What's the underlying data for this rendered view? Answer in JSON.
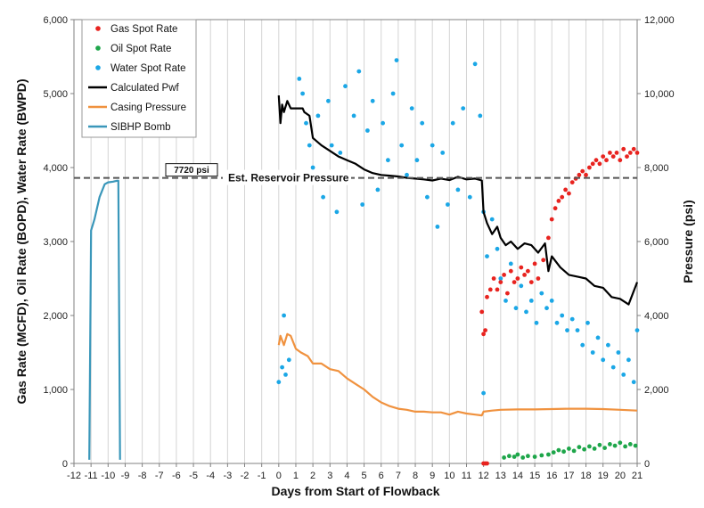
{
  "chart_data": {
    "type": "scatter",
    "xlabel": "Days from Start of Flowback",
    "ylabel_left": "Gas Rate (MCFD), Oil Rate (BOPD), Water Rate (BWPD)",
    "ylabel_right": "Pressure (psi)",
    "x_range": [
      -12,
      21
    ],
    "y_left_range": [
      0,
      6000
    ],
    "y_right_range": [
      0,
      12000
    ],
    "x_ticks": [
      "-12",
      "-11",
      "-10",
      "-9",
      "-8",
      "-7",
      "-6",
      "-5",
      "-4",
      "-3",
      "-2",
      "-1",
      "0",
      "1",
      "2",
      "3",
      "4",
      "5",
      "6",
      "7",
      "8",
      "9",
      "10",
      "11",
      "12",
      "13",
      "14",
      "15",
      "16",
      "17",
      "18",
      "19",
      "20",
      "21"
    ],
    "y_left_ticks": [
      "0",
      "1,000",
      "2,000",
      "3,000",
      "4,000",
      "5,000",
      "6,000"
    ],
    "y_right_ticks": [
      "0",
      "2,000",
      "4,000",
      "6,000",
      "8,000",
      "10,000",
      "12,000"
    ],
    "grid": "vertical",
    "legend_position": "top-left",
    "reservoir_pressure": {
      "value": 7720,
      "box_label": "7720 psi",
      "line_label": "Est. Reservoir Pressure"
    },
    "series": [
      {
        "name": "Gas Spot Rate",
        "axis": "left",
        "kind": "markers",
        "color": "#e8231f",
        "points": [
          [
            12,
            0
          ],
          [
            12.1,
            0
          ],
          [
            12.2,
            0
          ],
          [
            11.9,
            2050
          ],
          [
            12,
            1750
          ],
          [
            12.1,
            1800
          ],
          [
            12.2,
            2250
          ],
          [
            12.4,
            2350
          ],
          [
            12.6,
            2500
          ],
          [
            12.8,
            2350
          ],
          [
            13,
            2450
          ],
          [
            13.2,
            2550
          ],
          [
            13.4,
            2300
          ],
          [
            13.6,
            2600
          ],
          [
            13.8,
            2450
          ],
          [
            14,
            2500
          ],
          [
            14.2,
            2650
          ],
          [
            14.4,
            2550
          ],
          [
            14.6,
            2600
          ],
          [
            14.8,
            2450
          ],
          [
            15,
            2700
          ],
          [
            15.2,
            2500
          ],
          [
            15.5,
            2750
          ],
          [
            15.8,
            3050
          ],
          [
            16,
            3300
          ],
          [
            16.2,
            3450
          ],
          [
            16.4,
            3550
          ],
          [
            16.6,
            3600
          ],
          [
            16.8,
            3700
          ],
          [
            17,
            3650
          ],
          [
            17.2,
            3800
          ],
          [
            17.4,
            3850
          ],
          [
            17.6,
            3900
          ],
          [
            17.8,
            3950
          ],
          [
            18,
            3900
          ],
          [
            18.2,
            4000
          ],
          [
            18.4,
            4050
          ],
          [
            18.6,
            4100
          ],
          [
            18.8,
            4050
          ],
          [
            19,
            4150
          ],
          [
            19.2,
            4100
          ],
          [
            19.4,
            4200
          ],
          [
            19.6,
            4150
          ],
          [
            19.8,
            4200
          ],
          [
            20,
            4100
          ],
          [
            20.2,
            4250
          ],
          [
            20.4,
            4150
          ],
          [
            20.6,
            4200
          ],
          [
            20.8,
            4250
          ],
          [
            21,
            4200
          ]
        ]
      },
      {
        "name": "Oil Spot Rate",
        "axis": "left",
        "kind": "markers",
        "color": "#1ea64a",
        "points": [
          [
            13.2,
            80
          ],
          [
            13.5,
            100
          ],
          [
            13.8,
            90
          ],
          [
            14,
            120
          ],
          [
            14.3,
            80
          ],
          [
            14.6,
            100
          ],
          [
            15,
            90
          ],
          [
            15.4,
            110
          ],
          [
            15.8,
            120
          ],
          [
            16.1,
            150
          ],
          [
            16.4,
            180
          ],
          [
            16.7,
            160
          ],
          [
            17,
            200
          ],
          [
            17.3,
            170
          ],
          [
            17.6,
            220
          ],
          [
            17.9,
            190
          ],
          [
            18.2,
            230
          ],
          [
            18.5,
            200
          ],
          [
            18.8,
            250
          ],
          [
            19.1,
            210
          ],
          [
            19.4,
            260
          ],
          [
            19.7,
            240
          ],
          [
            20,
            280
          ],
          [
            20.3,
            230
          ],
          [
            20.6,
            260
          ],
          [
            20.9,
            240
          ]
        ]
      },
      {
        "name": "Water Spot Rate",
        "axis": "left",
        "kind": "markers",
        "color": "#1ba7e6",
        "points": [
          [
            0,
            1100
          ],
          [
            0.2,
            1300
          ],
          [
            0.4,
            1200
          ],
          [
            0.6,
            1400
          ],
          [
            0.3,
            2000
          ],
          [
            1.2,
            5200
          ],
          [
            1.4,
            5000
          ],
          [
            1.6,
            4600
          ],
          [
            1.8,
            4300
          ],
          [
            2,
            4000
          ],
          [
            2.3,
            4700
          ],
          [
            2.6,
            3600
          ],
          [
            2.9,
            4900
          ],
          [
            3.1,
            4300
          ],
          [
            3.4,
            3400
          ],
          [
            3.6,
            4200
          ],
          [
            3.9,
            5100
          ],
          [
            4.1,
            3900
          ],
          [
            4.4,
            4700
          ],
          [
            4.7,
            5300
          ],
          [
            4.9,
            3500
          ],
          [
            5.2,
            4500
          ],
          [
            5.5,
            4900
          ],
          [
            5.8,
            3700
          ],
          [
            6.1,
            4600
          ],
          [
            6.4,
            4100
          ],
          [
            6.7,
            5000
          ],
          [
            6.9,
            5450
          ],
          [
            7.2,
            4300
          ],
          [
            7.5,
            3900
          ],
          [
            7.8,
            4800
          ],
          [
            8.1,
            4100
          ],
          [
            8.4,
            4600
          ],
          [
            8.7,
            3600
          ],
          [
            9,
            4300
          ],
          [
            9.3,
            3200
          ],
          [
            9.6,
            4200
          ],
          [
            9.9,
            3500
          ],
          [
            10.2,
            4600
          ],
          [
            10.5,
            3700
          ],
          [
            10.8,
            4800
          ],
          [
            11.2,
            3600
          ],
          [
            11.5,
            5400
          ],
          [
            11.8,
            4700
          ],
          [
            12,
            3400
          ],
          [
            12.2,
            2800
          ],
          [
            12.5,
            3300
          ],
          [
            12.8,
            2900
          ],
          [
            13,
            2500
          ],
          [
            13.3,
            2200
          ],
          [
            13.6,
            2700
          ],
          [
            13.9,
            2100
          ],
          [
            14.2,
            2400
          ],
          [
            14.5,
            2050
          ],
          [
            14.8,
            2200
          ],
          [
            15.1,
            1900
          ],
          [
            15.4,
            2300
          ],
          [
            15.7,
            2100
          ],
          [
            16,
            2200
          ],
          [
            16.3,
            1900
          ],
          [
            16.6,
            2000
          ],
          [
            16.9,
            1800
          ],
          [
            17.2,
            1950
          ],
          [
            17.5,
            1800
          ],
          [
            17.8,
            1600
          ],
          [
            18.1,
            1900
          ],
          [
            18.4,
            1500
          ],
          [
            18.7,
            1700
          ],
          [
            19,
            1400
          ],
          [
            19.3,
            1600
          ],
          [
            19.6,
            1300
          ],
          [
            19.9,
            1500
          ],
          [
            20.2,
            1200
          ],
          [
            20.5,
            1400
          ],
          [
            20.8,
            1100
          ],
          [
            21,
            1800
          ],
          [
            12,
            950
          ]
        ]
      },
      {
        "name": "Calculated Pwf",
        "axis": "right",
        "kind": "line",
        "color": "#000000",
        "points": [
          [
            0,
            9950
          ],
          [
            0.1,
            9200
          ],
          [
            0.2,
            9700
          ],
          [
            0.3,
            9500
          ],
          [
            0.5,
            9800
          ],
          [
            0.7,
            9600
          ],
          [
            1.4,
            9600
          ],
          [
            1.5,
            9500
          ],
          [
            1.8,
            9400
          ],
          [
            2,
            8800
          ],
          [
            2.5,
            8600
          ],
          [
            3,
            8450
          ],
          [
            3.5,
            8300
          ],
          [
            4,
            8200
          ],
          [
            4.5,
            8100
          ],
          [
            5,
            7950
          ],
          [
            5.5,
            7850
          ],
          [
            6,
            7800
          ],
          [
            6.5,
            7780
          ],
          [
            7,
            7760
          ],
          [
            7.5,
            7720
          ],
          [
            8,
            7700
          ],
          [
            8.5,
            7680
          ],
          [
            9,
            7650
          ],
          [
            9.5,
            7700
          ],
          [
            10,
            7660
          ],
          [
            10.5,
            7750
          ],
          [
            11,
            7680
          ],
          [
            11.5,
            7700
          ],
          [
            11.9,
            7650
          ],
          [
            12,
            6800
          ],
          [
            12.2,
            6500
          ],
          [
            12.5,
            6200
          ],
          [
            12.8,
            6400
          ],
          [
            13,
            6100
          ],
          [
            13.3,
            5900
          ],
          [
            13.6,
            6000
          ],
          [
            14,
            5800
          ],
          [
            14.4,
            5950
          ],
          [
            14.8,
            5900
          ],
          [
            15.2,
            5700
          ],
          [
            15.6,
            5950
          ],
          [
            15.8,
            5200
          ],
          [
            16,
            5600
          ],
          [
            16.5,
            5300
          ],
          [
            17,
            5100
          ],
          [
            17.5,
            5050
          ],
          [
            18,
            5000
          ],
          [
            18.5,
            4800
          ],
          [
            19,
            4750
          ],
          [
            19.5,
            4500
          ],
          [
            20,
            4450
          ],
          [
            20.5,
            4300
          ],
          [
            21,
            4900
          ]
        ]
      },
      {
        "name": "Casing Pressure",
        "axis": "right",
        "kind": "line",
        "color": "#f0923f",
        "points": [
          [
            0,
            3200
          ],
          [
            0.1,
            3450
          ],
          [
            0.3,
            3200
          ],
          [
            0.5,
            3500
          ],
          [
            0.7,
            3450
          ],
          [
            1,
            3100
          ],
          [
            1.3,
            3000
          ],
          [
            1.7,
            2900
          ],
          [
            2,
            2700
          ],
          [
            2.5,
            2700
          ],
          [
            3,
            2550
          ],
          [
            3.5,
            2500
          ],
          [
            4,
            2300
          ],
          [
            4.5,
            2150
          ],
          [
            5,
            2000
          ],
          [
            5.5,
            1800
          ],
          [
            6,
            1650
          ],
          [
            6.5,
            1550
          ],
          [
            7,
            1480
          ],
          [
            7.5,
            1450
          ],
          [
            8,
            1400
          ],
          [
            8.5,
            1400
          ],
          [
            9,
            1380
          ],
          [
            9.5,
            1380
          ],
          [
            10,
            1320
          ],
          [
            10.5,
            1400
          ],
          [
            11,
            1350
          ],
          [
            11.5,
            1320
          ],
          [
            11.9,
            1300
          ],
          [
            12,
            1400
          ],
          [
            12.5,
            1430
          ],
          [
            13,
            1450
          ],
          [
            14,
            1460
          ],
          [
            15,
            1460
          ],
          [
            16,
            1470
          ],
          [
            17,
            1480
          ],
          [
            18,
            1480
          ],
          [
            19,
            1470
          ],
          [
            20,
            1450
          ],
          [
            21,
            1430
          ]
        ]
      },
      {
        "name": "SIBHP Bomb",
        "axis": "right",
        "kind": "line",
        "color": "#3a97ba",
        "points": [
          [
            -11.1,
            100
          ],
          [
            -11,
            6300
          ],
          [
            -10.8,
            6600
          ],
          [
            -10.5,
            7200
          ],
          [
            -10.2,
            7550
          ],
          [
            -10,
            7600
          ],
          [
            -9.7,
            7620
          ],
          [
            -9.5,
            7640
          ],
          [
            -9.4,
            7640
          ],
          [
            -9.3,
            100
          ]
        ]
      }
    ]
  }
}
